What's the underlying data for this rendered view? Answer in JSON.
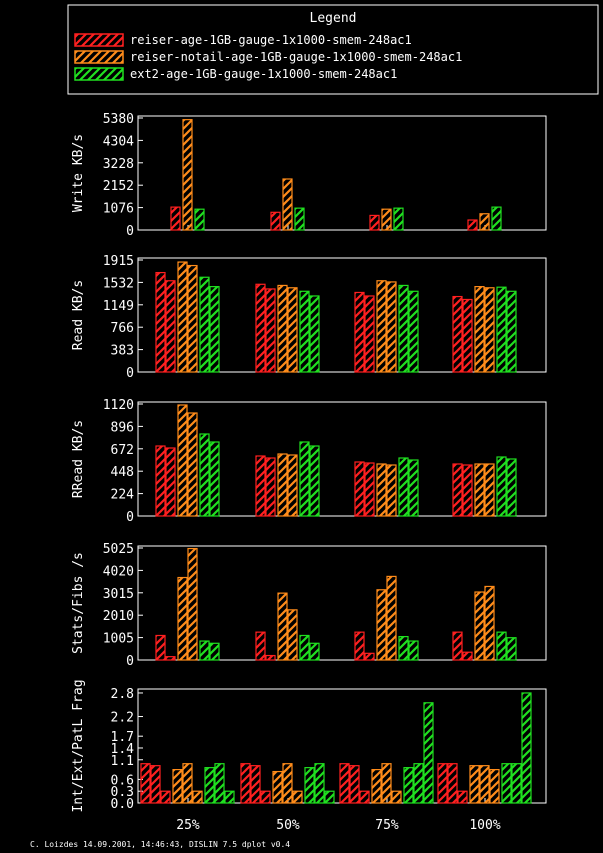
{
  "legend": {
    "title": "Legend",
    "entries": [
      {
        "name": "reiser-age-1GB-gauge-1x1000-smem-248ac1",
        "color": "#ff2020"
      },
      {
        "name": "reiser-notail-age-1GB-gauge-1x1000-smem-248ac1",
        "color": "#ff8c1a"
      },
      {
        "name": "ext2-age-1GB-gauge-1x1000-smem-248ac1",
        "color": "#20e020"
      }
    ]
  },
  "footer": "C. Loizdes 14.09.2001, 14:46:43, DISLIN 7.5 dplot v0.4",
  "chart_data": [
    {
      "type": "bar",
      "ylabel": "Write KB/s",
      "categories": [
        "25%",
        "50%",
        "75%",
        "100%"
      ],
      "yticks": [
        "0",
        "1076",
        "2152",
        "3228",
        "4304",
        "5380"
      ],
      "ylim": [
        0,
        5380
      ],
      "bars_per_series": 1,
      "series": [
        {
          "values": [
            [
              1100
            ],
            [
              850
            ],
            [
              700
            ],
            [
              480
            ]
          ]
        },
        {
          "values": [
            [
              5300
            ],
            [
              2450
            ],
            [
              1000
            ],
            [
              780
            ]
          ]
        },
        {
          "values": [
            [
              1000
            ],
            [
              1050
            ],
            [
              1050
            ],
            [
              1100
            ]
          ]
        }
      ]
    },
    {
      "type": "bar",
      "ylabel": "Read KB/s",
      "categories": [
        "25%",
        "50%",
        "75%",
        "100%"
      ],
      "yticks": [
        "0",
        "383",
        "766",
        "1149",
        "1532",
        "1915"
      ],
      "ylim": [
        0,
        1915
      ],
      "bars_per_series": 2,
      "series": [
        {
          "values": [
            [
              1700,
              1560
            ],
            [
              1500,
              1420
            ],
            [
              1360,
              1300
            ],
            [
              1290,
              1240
            ]
          ]
        },
        {
          "values": [
            [
              1880,
              1820
            ],
            [
              1480,
              1440
            ],
            [
              1560,
              1540
            ],
            [
              1460,
              1440
            ]
          ]
        },
        {
          "values": [
            [
              1620,
              1460
            ],
            [
              1380,
              1300
            ],
            [
              1480,
              1380
            ],
            [
              1450,
              1380
            ]
          ]
        }
      ]
    },
    {
      "type": "bar",
      "ylabel": "RRead KB/s",
      "categories": [
        "25%",
        "50%",
        "75%",
        "100%"
      ],
      "yticks": [
        "0",
        "224",
        "448",
        "672",
        "896",
        "1120"
      ],
      "ylim": [
        0,
        1120
      ],
      "bars_per_series": 2,
      "series": [
        {
          "values": [
            [
              700,
              680
            ],
            [
              600,
              580
            ],
            [
              540,
              530
            ],
            [
              520,
              510
            ]
          ]
        },
        {
          "values": [
            [
              1110,
              1030
            ],
            [
              620,
              610
            ],
            [
              520,
              510
            ],
            [
              520,
              520
            ]
          ]
        },
        {
          "values": [
            [
              820,
              740
            ],
            [
              740,
              700
            ],
            [
              580,
              560
            ],
            [
              590,
              570
            ]
          ]
        }
      ]
    },
    {
      "type": "bar",
      "ylabel": "Stats/Fibs /s",
      "categories": [
        "25%",
        "50%",
        "75%",
        "100%"
      ],
      "yticks": [
        "0",
        "1005",
        "2010",
        "3015",
        "4020",
        "5025"
      ],
      "ylim": [
        0,
        5025
      ],
      "bars_per_series": 2,
      "series": [
        {
          "values": [
            [
              1100,
              150
            ],
            [
              1250,
              200
            ],
            [
              1250,
              300
            ],
            [
              1250,
              350
            ]
          ]
        },
        {
          "values": [
            [
              3700,
              5000
            ],
            [
              3000,
              2250
            ],
            [
              3150,
              3750
            ],
            [
              3050,
              3300
            ]
          ]
        },
        {
          "values": [
            [
              850,
              750
            ],
            [
              1100,
              750
            ],
            [
              1050,
              850
            ],
            [
              1250,
              1000
            ]
          ]
        }
      ]
    },
    {
      "type": "bar",
      "ylabel": "Int/Ext/PatL Frag",
      "categories": [
        "25%",
        "50%",
        "75%",
        "100%"
      ],
      "yticks": [
        "0.0",
        "0.3",
        "0.6",
        "1.1",
        "1.4",
        "1.7",
        "2.2",
        "2.8"
      ],
      "ylim": [
        0,
        2.85
      ],
      "bars_per_series": 3,
      "series": [
        {
          "values": [
            [
              1.0,
              0.95,
              0.3
            ],
            [
              1.0,
              0.95,
              0.3
            ],
            [
              1.0,
              0.95,
              0.3
            ],
            [
              1.0,
              1.0,
              0.3
            ]
          ]
        },
        {
          "values": [
            [
              0.85,
              1.0,
              0.3
            ],
            [
              0.8,
              1.0,
              0.3
            ],
            [
              0.85,
              1.0,
              0.3
            ],
            [
              0.95,
              0.95,
              0.85
            ]
          ]
        },
        {
          "values": [
            [
              0.9,
              1.0,
              0.3
            ],
            [
              0.9,
              1.0,
              0.3
            ],
            [
              0.9,
              1.0,
              2.55
            ],
            [
              1.0,
              1.0,
              2.8
            ]
          ]
        }
      ]
    }
  ]
}
